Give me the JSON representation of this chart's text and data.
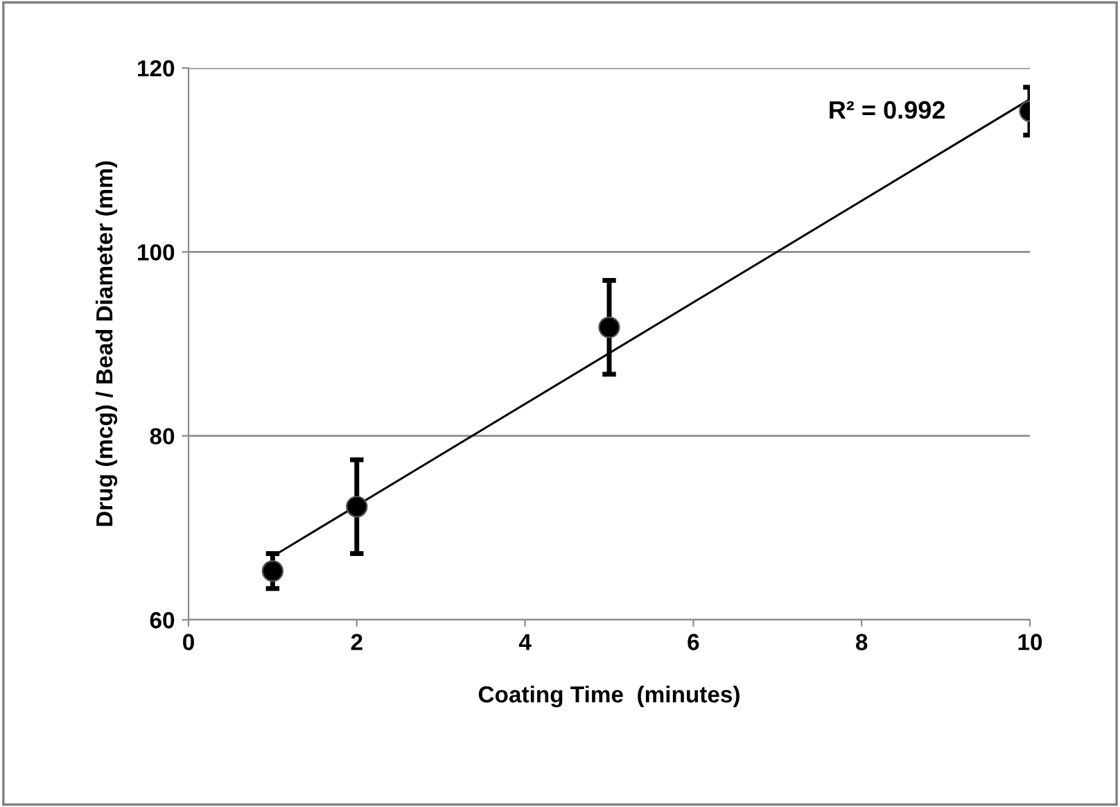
{
  "chart_data": {
    "type": "scatter",
    "xlabel": "Coating Time  (minutes)",
    "ylabel": "Drug (mcg) / Bead Diameter (mm)",
    "series": [
      {
        "color": "#000000",
        "x": [
          1,
          2,
          5,
          10
        ],
        "values": [
          65.3,
          72.3,
          91.8,
          115.3
        ],
        "errors": [
          1.9,
          5.1,
          5.1,
          2.6
        ],
        "marker": "circle"
      },
      {
        "type": "line",
        "color": "#000000",
        "x": [
          1,
          10
        ],
        "values": [
          66.9,
          116.6
        ],
        "marker": "none",
        "line_style": "solid"
      }
    ],
    "annotations": [
      "R² = 0.992"
    ],
    "xlim": [
      0,
      10
    ],
    "xticks": [
      0,
      2,
      4,
      6,
      8,
      10
    ],
    "ylim": [
      60,
      120
    ],
    "yticks": [
      60,
      80,
      100,
      120
    ],
    "grid": "y",
    "legend": false
  }
}
